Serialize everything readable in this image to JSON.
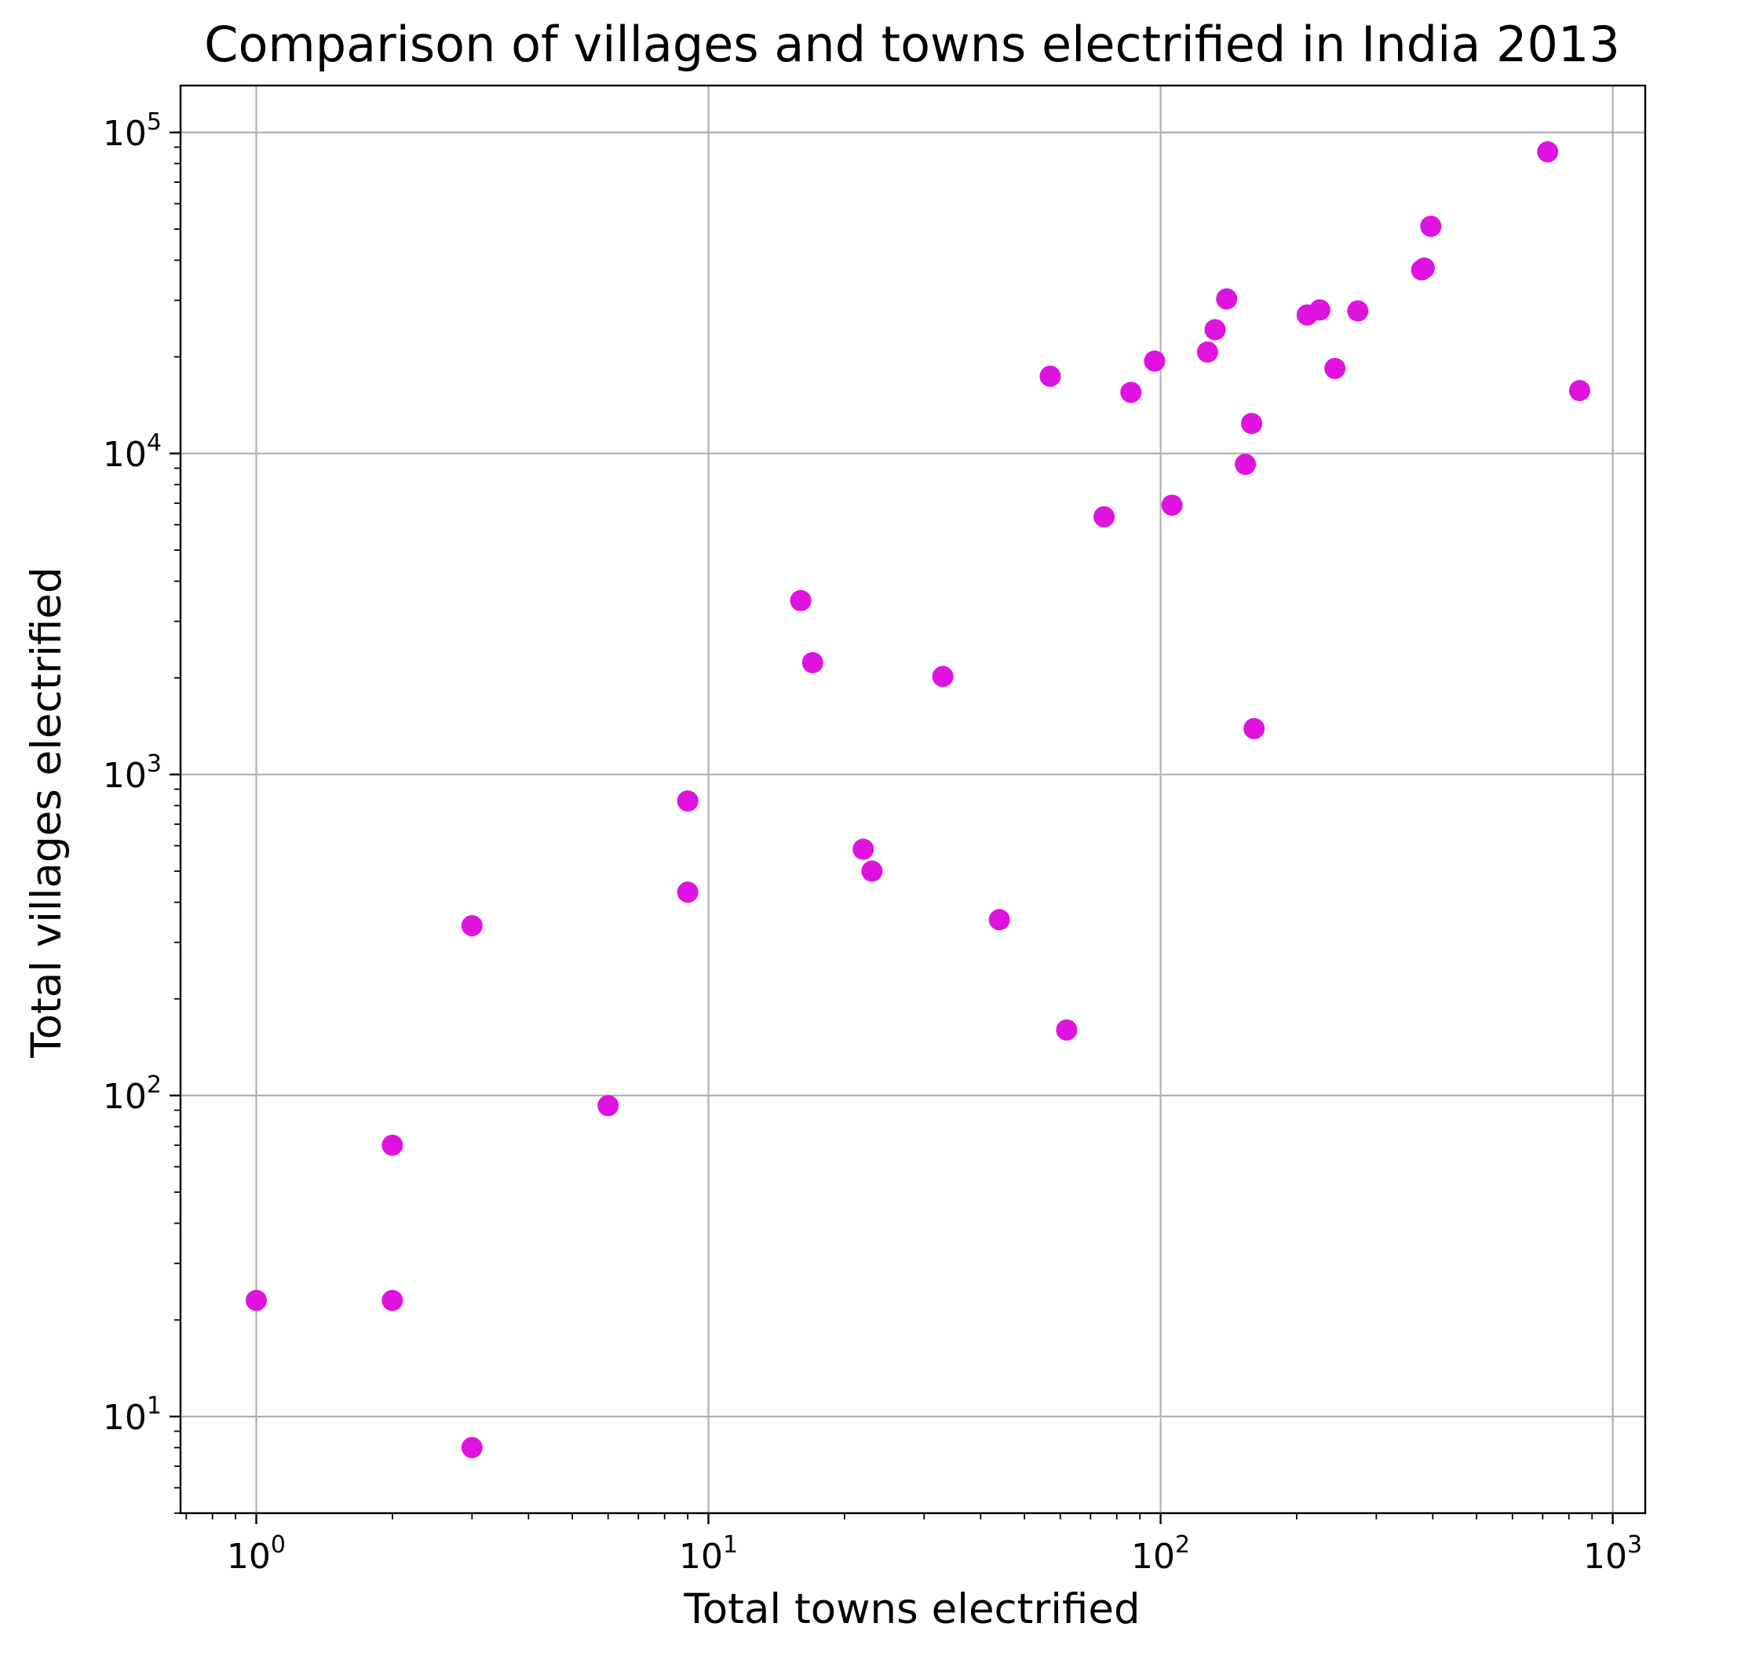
{
  "chart_data": {
    "type": "scatter",
    "title": "Comparison of villages and towns electrified in India 2013",
    "xlabel": "Total towns electrified",
    "ylabel": "Total villages electrified",
    "xscale": "log",
    "yscale": "log",
    "xlim": [
      0.68,
      1180
    ],
    "ylim": [
      5,
      140000
    ],
    "grid": true,
    "marker_color": "#e012e0",
    "x_ticks": [
      {
        "base": "10",
        "exp": "0",
        "value": 1
      },
      {
        "base": "10",
        "exp": "1",
        "value": 10
      },
      {
        "base": "10",
        "exp": "2",
        "value": 100
      },
      {
        "base": "10",
        "exp": "3",
        "value": 1000
      }
    ],
    "y_ticks": [
      {
        "base": "10",
        "exp": "1",
        "value": 10
      },
      {
        "base": "10",
        "exp": "2",
        "value": 100
      },
      {
        "base": "10",
        "exp": "3",
        "value": 1000
      },
      {
        "base": "10",
        "exp": "4",
        "value": 10000
      },
      {
        "base": "10",
        "exp": "5",
        "value": 100000
      }
    ],
    "points": [
      {
        "x": 1,
        "y": 23
      },
      {
        "x": 2,
        "y": 23
      },
      {
        "x": 2,
        "y": 70
      },
      {
        "x": 3,
        "y": 8
      },
      {
        "x": 3,
        "y": 338
      },
      {
        "x": 6,
        "y": 93
      },
      {
        "x": 9,
        "y": 827
      },
      {
        "x": 9,
        "y": 430
      },
      {
        "x": 16,
        "y": 3480
      },
      {
        "x": 17,
        "y": 2230
      },
      {
        "x": 22,
        "y": 585
      },
      {
        "x": 23,
        "y": 500
      },
      {
        "x": 33,
        "y": 2020
      },
      {
        "x": 44,
        "y": 353
      },
      {
        "x": 57,
        "y": 17400
      },
      {
        "x": 62,
        "y": 160
      },
      {
        "x": 75,
        "y": 6350
      },
      {
        "x": 86,
        "y": 15500
      },
      {
        "x": 97,
        "y": 19400
      },
      {
        "x": 106,
        "y": 6900
      },
      {
        "x": 127,
        "y": 20700
      },
      {
        "x": 132,
        "y": 24300
      },
      {
        "x": 140,
        "y": 30300
      },
      {
        "x": 154,
        "y": 9250
      },
      {
        "x": 159,
        "y": 12400
      },
      {
        "x": 161,
        "y": 1390
      },
      {
        "x": 211,
        "y": 27000
      },
      {
        "x": 225,
        "y": 28000
      },
      {
        "x": 243,
        "y": 18400
      },
      {
        "x": 273,
        "y": 27800
      },
      {
        "x": 378,
        "y": 37300
      },
      {
        "x": 383,
        "y": 37800
      },
      {
        "x": 396,
        "y": 51000
      },
      {
        "x": 718,
        "y": 87000
      },
      {
        "x": 845,
        "y": 15700
      }
    ]
  }
}
